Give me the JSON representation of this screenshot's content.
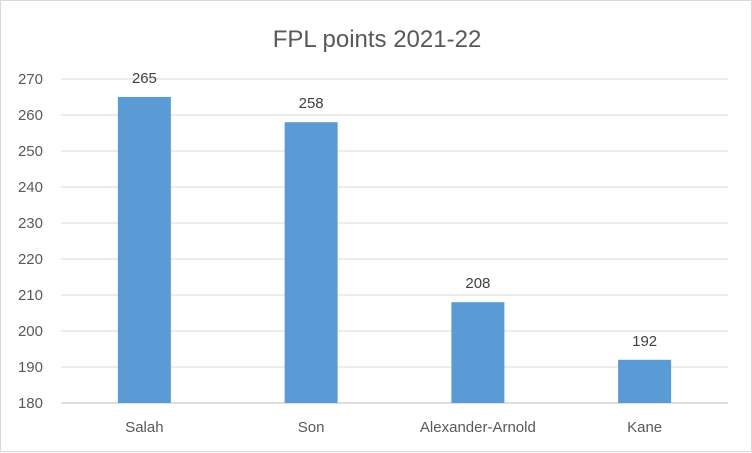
{
  "chart_data": {
    "type": "bar",
    "title": "FPL points 2021-22",
    "categories": [
      "Salah",
      "Son",
      "Alexander-Arnold",
      "Kane"
    ],
    "values": [
      265,
      258,
      208,
      192
    ],
    "ylim": [
      180,
      270
    ],
    "yticks": [
      180,
      190,
      200,
      210,
      220,
      230,
      240,
      250,
      260,
      270
    ],
    "xlabel": "",
    "ylabel": "",
    "grid": true,
    "legend": "none",
    "data_labels": true,
    "bar_color": "#5b9bd5"
  }
}
